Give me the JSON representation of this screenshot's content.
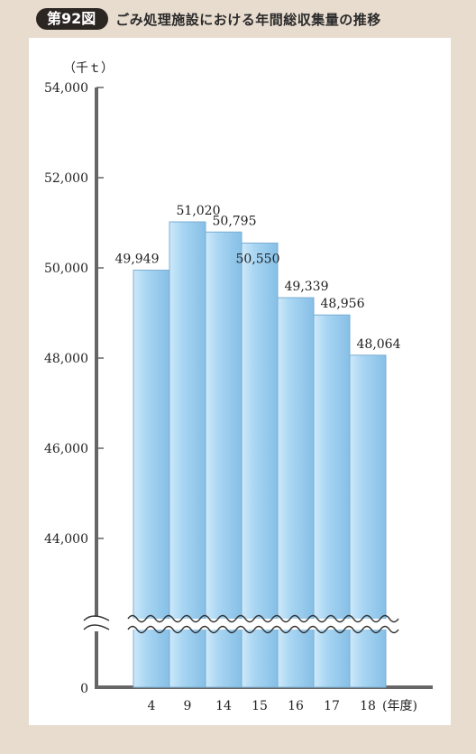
{
  "header": {
    "badge": "第92図",
    "title": "ごみ処理施設における年間総収集量の推移"
  },
  "colors": {
    "background": "#e8dccf",
    "bar_fill": "#a6d4f2",
    "bar_edge": "#7aaed3",
    "axis": "#666666",
    "badge": "#2c2623"
  },
  "chart_data": {
    "type": "bar",
    "unit_label": "（千ｔ）",
    "x_unit_label": "(年度)",
    "categories": [
      "4",
      "9",
      "14",
      "15",
      "16",
      "17",
      "18"
    ],
    "values": [
      49949,
      51020,
      50795,
      50550,
      49339,
      48956,
      48064
    ],
    "value_labels": [
      "49,949",
      "51,020",
      "50,795",
      "50,550",
      "49,339",
      "48,956",
      "48,064"
    ],
    "y_ticks": [
      {
        "value": 54000,
        "label": "54,000"
      },
      {
        "value": 52000,
        "label": "52,000"
      },
      {
        "value": 50000,
        "label": "50,000"
      },
      {
        "value": 48000,
        "label": "48,000"
      },
      {
        "value": 46000,
        "label": "46,000"
      },
      {
        "value": 44000,
        "label": "44,000"
      }
    ],
    "zero_label": "0",
    "ylim": [
      44000,
      54000
    ],
    "axis_break": true,
    "grid": false
  }
}
